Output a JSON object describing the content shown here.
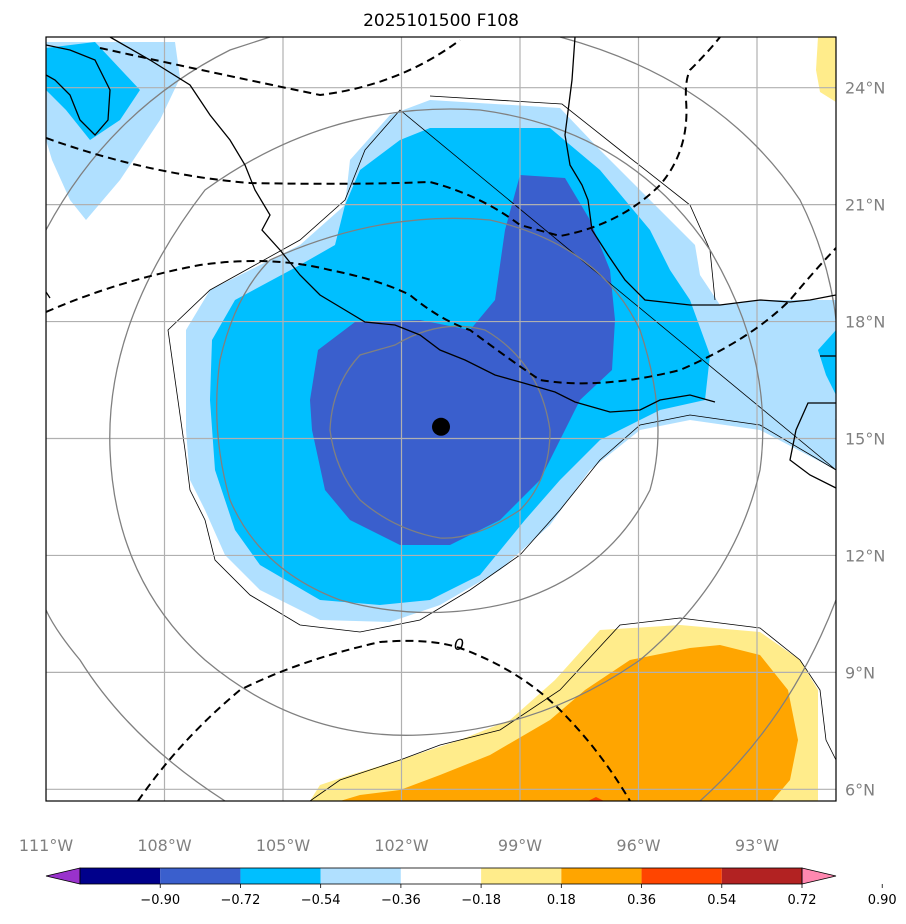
{
  "chart_data": {
    "type": "heatmap",
    "title": "2025101500 F108",
    "xlabel": "",
    "ylabel": "",
    "lon_ticks": [
      "111°W",
      "108°W",
      "105°W",
      "102°W",
      "99°W",
      "96°W",
      "93°W"
    ],
    "lat_ticks": [
      "24°N",
      "21°N",
      "18°N",
      "15°N",
      "12°N",
      "9°N",
      "6°N"
    ],
    "lon_range": [
      -111,
      -91
    ],
    "lat_range": [
      5.7,
      25.3
    ],
    "colorbar": {
      "ticks": [
        "−0.90",
        "−0.72",
        "−0.54",
        "−0.36",
        "−0.18",
        "0.18",
        "0.36",
        "0.54",
        "0.72",
        "0.90"
      ],
      "colors": [
        "#9932cc",
        "#00008b",
        "#3a5fcd",
        "#00bfff",
        "#b0e0ff",
        "#ffffff",
        "#ffec8b",
        "#ffa500",
        "#ff4500",
        "#b22222",
        "#ff88b0"
      ]
    },
    "contour_label": "0",
    "center_marker": {
      "lon": -101.0,
      "lat": 15.3
    },
    "grid": true
  }
}
